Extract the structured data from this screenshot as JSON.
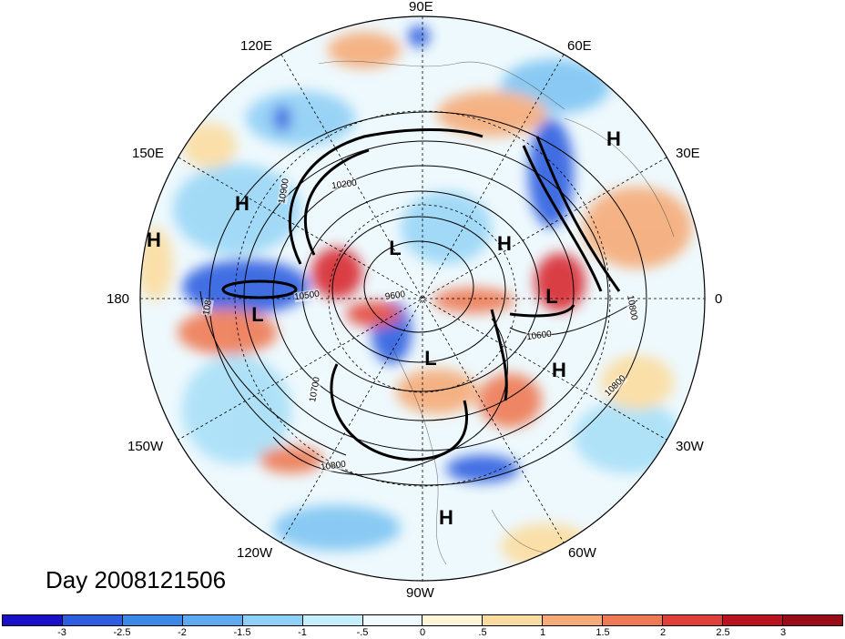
{
  "map": {
    "projection": "north-polar-stereographic",
    "longitude_labels": [
      "90E",
      "120E",
      "60E",
      "150E",
      "30E",
      "180",
      "0",
      "150W",
      "30W",
      "120W",
      "60W",
      "90W"
    ],
    "pressure_systems": [
      "H",
      "H",
      "L",
      "H",
      "L",
      "L",
      "L",
      "H",
      "H",
      "H"
    ],
    "contour_labels": [
      "10900",
      "10200",
      "10500",
      "9600",
      "10800",
      "10600",
      "10700",
      "10800",
      "10800",
      "108"
    ],
    "contour_variable_note": ""
  },
  "day_label": "Day 2008121506",
  "colorbar": {
    "tick_labels": [
      "-3",
      "-2.5",
      "-2",
      "-1.5",
      "-1",
      "-.5",
      "0",
      ".5",
      "1",
      "1.5",
      "2",
      "2.5",
      "3"
    ],
    "colors": [
      "#1a10c8",
      "#2e5de0",
      "#3b8ae8",
      "#5eaaf0",
      "#8fd0f7",
      "#c6eefb",
      "#f0fbff",
      "#fff6d8",
      "#fbdca0",
      "#f5ab78",
      "#ee7a55",
      "#e0403a",
      "#b81420",
      "#9a0c18"
    ]
  }
}
